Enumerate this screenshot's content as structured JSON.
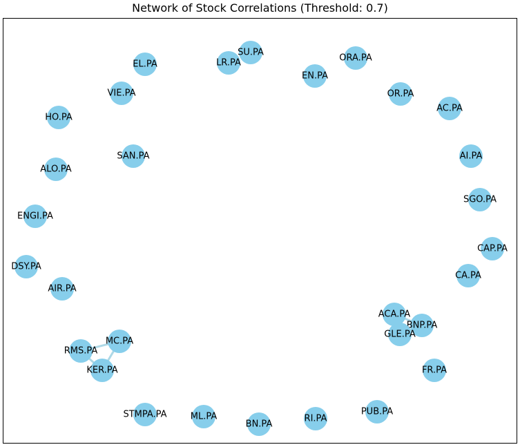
{
  "title": "Network of Stock Correlations (Threshold: 0.7)",
  "colors": {
    "node": "#87ceeb",
    "edge": "#add8e6",
    "frame": "#000000",
    "background": "#ffffff"
  },
  "graph": {
    "nodes": [
      {
        "id": "SU.PA"
      },
      {
        "id": "LR.PA"
      },
      {
        "id": "EL.PA"
      },
      {
        "id": "ORA.PA"
      },
      {
        "id": "EN.PA"
      },
      {
        "id": "VIE.PA"
      },
      {
        "id": "OR.PA"
      },
      {
        "id": "AC.PA"
      },
      {
        "id": "HO.PA"
      },
      {
        "id": "SAN.PA"
      },
      {
        "id": "AI.PA"
      },
      {
        "id": "ALO.PA"
      },
      {
        "id": "SGO.PA"
      },
      {
        "id": "ENGI.PA"
      },
      {
        "id": "CAP.PA"
      },
      {
        "id": "DSY.PA"
      },
      {
        "id": "CA.PA"
      },
      {
        "id": "AIR.PA"
      },
      {
        "id": "ACA.PA"
      },
      {
        "id": "BNP.PA"
      },
      {
        "id": "GLE.PA"
      },
      {
        "id": "MC.PA"
      },
      {
        "id": "RMS.PA"
      },
      {
        "id": "KER.PA"
      },
      {
        "id": "FR.PA"
      },
      {
        "id": "PUB.PA"
      },
      {
        "id": "STMPA.PA"
      },
      {
        "id": "ML.PA"
      },
      {
        "id": "RI.PA"
      },
      {
        "id": "BN.PA"
      }
    ],
    "edges": [
      {
        "source": "MC.PA",
        "target": "RMS.PA"
      },
      {
        "source": "MC.PA",
        "target": "KER.PA"
      },
      {
        "source": "RMS.PA",
        "target": "KER.PA"
      },
      {
        "source": "ACA.PA",
        "target": "BNP.PA"
      },
      {
        "source": "ACA.PA",
        "target": "GLE.PA"
      },
      {
        "source": "BNP.PA",
        "target": "GLE.PA"
      }
    ]
  }
}
